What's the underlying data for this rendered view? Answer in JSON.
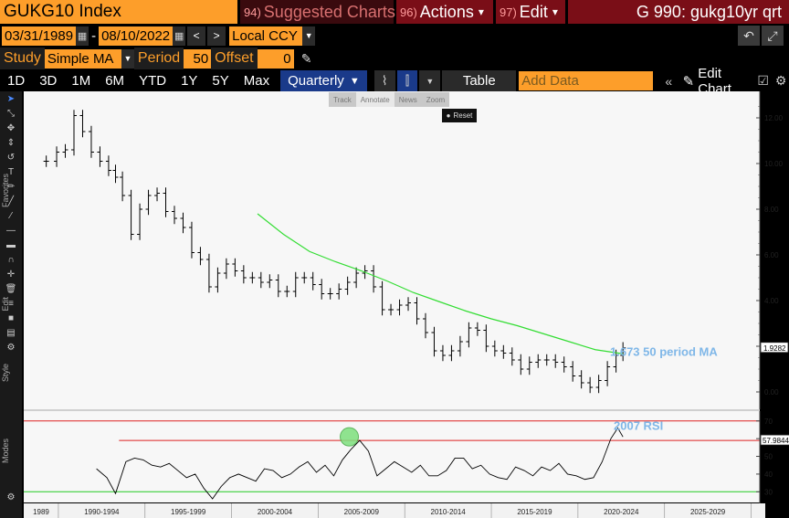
{
  "header": {
    "ticker": "GUKG10 Index",
    "suggested": {
      "num": "94)",
      "label": "Suggested Charts"
    },
    "actions": {
      "num": "96)",
      "label": "Actions",
      "arrow": "▾"
    },
    "edit": {
      "num": "97)",
      "label": "Edit",
      "arrow": "▾"
    },
    "chart_title": "G 990: gukg10yr qrt"
  },
  "daterow": {
    "start": "03/31/1989",
    "sep": "-",
    "end": "08/10/2022",
    "currency": "Local CCY"
  },
  "studyrow": {
    "study_label": "Study",
    "study_value": "Simple MA",
    "period_label": "Period",
    "period_value": "50",
    "offset_label": "Offset",
    "offset_value": "0"
  },
  "toolbar": {
    "timeframes": [
      "1D",
      "3D",
      "1M",
      "6M",
      "YTD",
      "1Y",
      "5Y",
      "Max"
    ],
    "frequency": "Quarterly",
    "table_label": "Table",
    "add_data_placeholder": "Add Data",
    "edit_chart_label": "Edit Chart"
  },
  "mini_tools": [
    "Track",
    "Annotate",
    "News",
    "Zoom"
  ],
  "reset_label": "Reset",
  "side_labels": {
    "favorites": "Favorites",
    "edit": "Edit",
    "style": "Style",
    "modes": "Modes"
  },
  "chart_data": [
    {
      "type": "line",
      "subtype": "ohlc-bars",
      "ylim": [
        -0.6,
        13.0
      ],
      "yticks": [
        0,
        2,
        4,
        6,
        8,
        10,
        12
      ],
      "ytick_labels": [
        "0.00",
        "2.00",
        "4.00",
        "6.00",
        "8.00",
        "10.00",
        "12.00"
      ],
      "series": [
        {
          "color": "#000000",
          "x": [
            1989.3,
            1989.9,
            1990.4,
            1990.9,
            1991.4,
            1991.9,
            1992.4,
            1992.9,
            1993.3,
            1993.7,
            1994.2,
            1994.7,
            1995.2,
            1995.7,
            1996.2,
            1996.7,
            1997.2,
            1997.7,
            1998.2,
            1998.7,
            1999.2,
            1999.7,
            2000.2,
            2000.7,
            2001.2,
            2001.7,
            2002.2,
            2002.7,
            2003.2,
            2003.7,
            2004.2,
            2004.7,
            2005.2,
            2005.7,
            2006.2,
            2006.7,
            2007.2,
            2007.7,
            2008.2,
            2008.7,
            2009.2,
            2009.7,
            2010.2,
            2010.7,
            2011.2,
            2011.7,
            2012.2,
            2012.7,
            2013.2,
            2013.7,
            2014.2,
            2014.7,
            2015.2,
            2015.7,
            2016.2,
            2016.7,
            2017.2,
            2017.7,
            2018.2,
            2018.7,
            2019.2,
            2019.7,
            2020.2,
            2020.7,
            2021.2,
            2021.7,
            2022.2,
            2022.6
          ],
          "values": [
            10.1,
            10.5,
            10.6,
            12.1,
            11.4,
            10.5,
            10.1,
            9.7,
            9.4,
            8.6,
            6.9,
            8.0,
            8.6,
            8.7,
            7.9,
            7.6,
            7.2,
            6.1,
            5.8,
            4.6,
            5.2,
            5.6,
            5.3,
            5.0,
            5.0,
            4.8,
            4.9,
            4.4,
            4.4,
            5.0,
            5.0,
            4.7,
            4.3,
            4.3,
            4.5,
            4.8,
            5.2,
            5.3,
            4.6,
            3.6,
            3.6,
            3.8,
            3.9,
            3.2,
            2.6,
            1.8,
            1.6,
            1.8,
            2.2,
            2.8,
            2.7,
            2.0,
            1.8,
            1.7,
            1.4,
            1.0,
            1.3,
            1.4,
            1.4,
            1.3,
            1.1,
            0.7,
            0.4,
            0.2,
            0.5,
            1.1,
            1.6,
            1.93
          ]
        },
        {
          "name": "1.673 50 period MA",
          "color": "#33dd33",
          "x": [
            2001.5,
            2003,
            2004.5,
            2006,
            2007.5,
            2009,
            2010.5,
            2012,
            2013.5,
            2015,
            2016.5,
            2018,
            2019.5,
            2021,
            2022.6
          ],
          "values": [
            7.8,
            6.9,
            6.15,
            5.7,
            5.3,
            4.85,
            4.35,
            3.95,
            3.55,
            3.2,
            2.9,
            2.55,
            2.2,
            1.85,
            1.67
          ]
        }
      ],
      "last_price_label": "1.9282",
      "annotation": "1.673 50 period MA"
    },
    {
      "type": "line",
      "ylim": [
        25,
        74
      ],
      "yticks": [
        30,
        40,
        50,
        60,
        70
      ],
      "ytick_labels": [
        "30",
        "40",
        "50",
        "60",
        "70"
      ],
      "reference_lines": [
        {
          "value": 70,
          "color": "#dd2222"
        },
        {
          "value": 59,
          "color": "#dd2222"
        },
        {
          "value": 30,
          "color": "#22cc22"
        }
      ],
      "highlight_point": {
        "x": 2006.8,
        "y": 60
      },
      "series": [
        {
          "name": "2007 RSI",
          "color": "#000000",
          "x": [
            1992.2,
            1992.8,
            1993.3,
            1993.9,
            1994.4,
            1994.9,
            1995.4,
            1995.9,
            1996.4,
            1996.9,
            1997.4,
            1997.9,
            1998.4,
            1998.9,
            1999.4,
            1999.9,
            2000.4,
            2000.9,
            2001.4,
            2001.9,
            2002.4,
            2002.9,
            2003.4,
            2003.9,
            2004.4,
            2004.9,
            2005.4,
            2005.9,
            2006.4,
            2006.9,
            2007.4,
            2007.9,
            2008.4,
            2008.9,
            2009.4,
            2009.9,
            2010.4,
            2010.9,
            2011.4,
            2011.9,
            2012.4,
            2012.9,
            2013.4,
            2013.9,
            2014.4,
            2014.9,
            2015.4,
            2015.9,
            2016.4,
            2016.9,
            2017.4,
            2017.9,
            2018.4,
            2018.9,
            2019.4,
            2019.9,
            2020.4,
            2020.9,
            2021.4,
            2021.9,
            2022.3,
            2022.6
          ],
          "values": [
            43,
            38,
            29,
            47,
            49,
            48,
            45,
            44,
            46,
            42,
            38,
            40,
            32,
            26,
            33,
            38,
            40,
            38,
            36,
            43,
            42,
            38,
            40,
            44,
            47,
            41,
            45,
            39,
            48,
            54,
            59,
            53,
            39,
            43,
            47,
            44,
            41,
            45,
            39,
            39,
            42,
            49,
            49,
            43,
            45,
            40,
            38,
            37,
            44,
            42,
            39,
            44,
            42,
            46,
            40,
            39,
            37,
            38,
            47,
            60,
            66,
            61
          ],
          "last_value_label": "57.9844"
        }
      ],
      "annotation": "2007 RSI"
    }
  ],
  "xaxis": {
    "labels": [
      "1989",
      "1990-1994",
      "1995-1999",
      "2000-2004",
      "2005-2009",
      "2010-2014",
      "2015-2019",
      "2020-2024",
      "2025-2029"
    ]
  }
}
